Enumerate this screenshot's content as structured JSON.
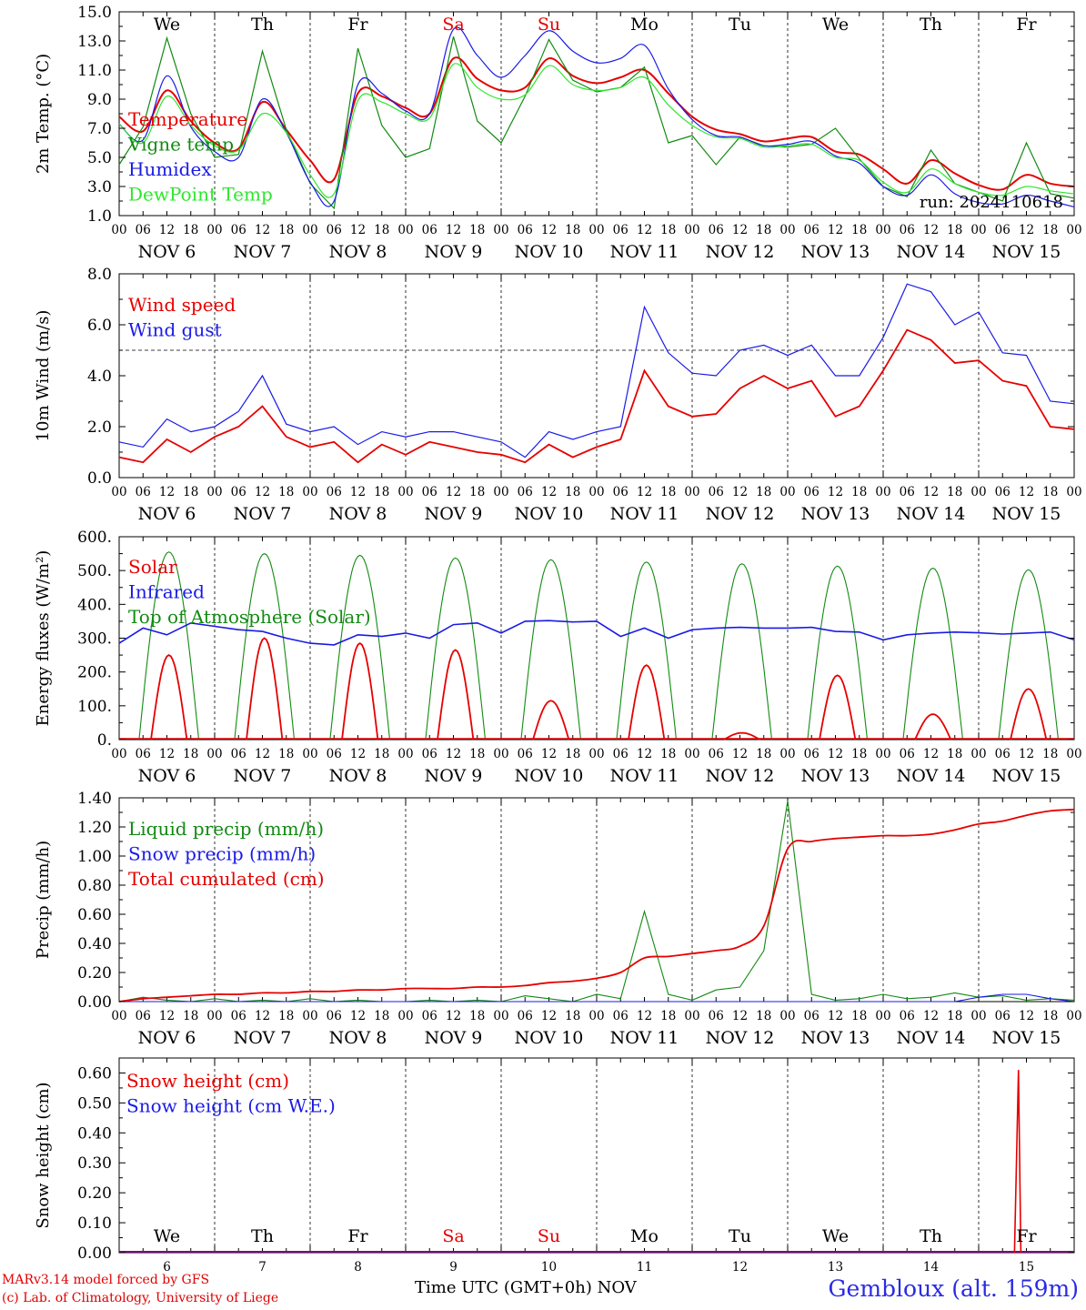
{
  "colors": {
    "red": "#e60000",
    "green": "#128a12",
    "blue": "#1a1ae6",
    "lightgreen": "#2ee62e",
    "weekend": "#e60000",
    "grid": "#000000"
  },
  "run_label": "run: 2024110618",
  "footer": {
    "model": "MARv3.14 model forced by GFS",
    "lab": "(c) Lab. of Climatology, University of Liege",
    "time_axis": "Time UTC (GMT+0h)",
    "month_short": "NOV",
    "station": "Gembloux (alt. 159m)"
  },
  "days": [
    "6",
    "7",
    "8",
    "9",
    "10",
    "11",
    "12",
    "13",
    "14",
    "15"
  ],
  "weekdays": [
    {
      "label": "We",
      "weekend": false
    },
    {
      "label": "Th",
      "weekend": false
    },
    {
      "label": "Fr",
      "weekend": false
    },
    {
      "label": "Sa",
      "weekend": true
    },
    {
      "label": "Su",
      "weekend": true
    },
    {
      "label": "Mo",
      "weekend": false
    },
    {
      "label": "Tu",
      "weekend": false
    },
    {
      "label": "We",
      "weekend": false
    },
    {
      "label": "Th",
      "weekend": false
    },
    {
      "label": "Fr",
      "weekend": false
    }
  ],
  "hour_ticks": [
    "00",
    "06",
    "12",
    "18"
  ],
  "chart_data": [
    {
      "type": "line",
      "ylabel": "2m Temp. (°C)",
      "ylim": [
        1.0,
        15.0
      ],
      "yticks": [
        "1.0",
        "3.0",
        "5.0",
        "7.0",
        "9.0",
        "11.0",
        "13.0",
        "15.0"
      ],
      "x": [
        0,
        6,
        12,
        18,
        24,
        30,
        36,
        42,
        48,
        54,
        60,
        66,
        72,
        78,
        84,
        90,
        96,
        102,
        108,
        114,
        120,
        126,
        132,
        138,
        144,
        150,
        156,
        162,
        168,
        174,
        180,
        186,
        192,
        198,
        204,
        210,
        216,
        222,
        228,
        234,
        240
      ],
      "series": [
        {
          "name": "Temperature",
          "color": "red",
          "values": [
            7.8,
            6.8,
            9.6,
            7.5,
            6.0,
            5.6,
            8.8,
            6.9,
            4.8,
            3.5,
            9.4,
            9.2,
            8.4,
            8.0,
            11.8,
            10.4,
            9.6,
            9.8,
            11.8,
            10.6,
            10.1,
            10.5,
            11.0,
            9.4,
            7.8,
            6.9,
            6.6,
            6.1,
            6.3,
            6.4,
            5.4,
            5.2,
            4.2,
            3.2,
            4.8,
            3.9,
            3.1,
            2.8,
            3.8,
            3.2,
            3.0
          ]
        },
        {
          "name": "Vigne temp",
          "color": "green",
          "values": [
            4.5,
            7.1,
            13.2,
            8.0,
            5.0,
            5.2,
            12.3,
            6.9,
            3.2,
            1.5,
            12.5,
            7.2,
            5.0,
            5.6,
            13.3,
            7.5,
            6.0,
            9.2,
            13.1,
            10.3,
            9.5,
            9.8,
            11.2,
            6.0,
            6.5,
            4.5,
            6.4,
            5.8,
            5.7,
            5.9,
            7.0,
            4.9,
            3.0,
            2.3,
            5.5,
            3.2,
            2.6,
            2.0,
            6.0,
            2.5,
            2.2
          ]
        },
        {
          "name": "Humidex",
          "color": "blue",
          "values": [
            7.3,
            6.2,
            10.6,
            7.1,
            5.4,
            5.0,
            9.0,
            6.7,
            3.3,
            2.0,
            10.0,
            9.4,
            8.2,
            8.0,
            13.8,
            12.0,
            10.5,
            12.0,
            13.7,
            12.3,
            11.5,
            11.8,
            12.7,
            9.7,
            7.6,
            6.5,
            6.4,
            5.8,
            5.9,
            6.1,
            5.1,
            4.6,
            3.0,
            2.4,
            3.8,
            2.5,
            1.9,
            1.8,
            2.4,
            2.0,
            1.6
          ]
        },
        {
          "name": "DewPoint Temp",
          "color": "lightgreen",
          "values": [
            7.3,
            6.0,
            9.2,
            7.2,
            5.8,
            5.5,
            8.0,
            6.7,
            3.8,
            2.5,
            8.9,
            8.8,
            8.0,
            7.7,
            11.4,
            9.8,
            9.0,
            9.3,
            11.3,
            10.0,
            9.6,
            9.8,
            10.5,
            8.6,
            7.2,
            6.4,
            6.3,
            5.7,
            5.8,
            5.9,
            5.0,
            4.8,
            3.3,
            2.6,
            4.2,
            3.2,
            2.6,
            2.4,
            3.0,
            2.7,
            2.5
          ]
        }
      ]
    },
    {
      "type": "line",
      "ylabel": "10m Wind (m/s)",
      "ylim": [
        0.0,
        8.0
      ],
      "yticks": [
        "0.0",
        "2.0",
        "4.0",
        "6.0",
        "8.0"
      ],
      "hline": 5.0,
      "x": [
        0,
        6,
        12,
        18,
        24,
        30,
        36,
        42,
        48,
        54,
        60,
        66,
        72,
        78,
        84,
        90,
        96,
        102,
        108,
        114,
        120,
        126,
        132,
        138,
        144,
        150,
        156,
        162,
        168,
        174,
        180,
        186,
        192,
        198,
        204,
        210,
        216,
        222,
        228,
        234,
        240
      ],
      "series": [
        {
          "name": "Wind speed",
          "color": "red",
          "values": [
            0.8,
            0.6,
            1.5,
            1.0,
            1.6,
            2.0,
            2.8,
            1.6,
            1.2,
            1.4,
            0.6,
            1.3,
            0.9,
            1.4,
            1.2,
            1.0,
            0.9,
            0.6,
            1.3,
            0.8,
            1.2,
            1.5,
            4.2,
            2.8,
            2.4,
            2.5,
            3.5,
            4.0,
            3.5,
            3.8,
            2.4,
            2.8,
            4.2,
            5.8,
            5.4,
            4.5,
            4.6,
            3.8,
            3.6,
            2.0,
            1.9
          ]
        },
        {
          "name": "Wind gust",
          "color": "blue",
          "values": [
            1.4,
            1.2,
            2.3,
            1.8,
            2.0,
            2.6,
            4.0,
            2.1,
            1.8,
            2.0,
            1.3,
            1.8,
            1.6,
            1.8,
            1.8,
            1.6,
            1.4,
            0.8,
            1.8,
            1.5,
            1.8,
            2.0,
            6.7,
            4.9,
            4.1,
            4.0,
            5.0,
            5.2,
            4.8,
            5.2,
            4.0,
            4.0,
            5.5,
            7.6,
            7.3,
            6.0,
            6.5,
            4.9,
            4.8,
            3.0,
            2.9
          ]
        }
      ]
    },
    {
      "type": "line",
      "ylabel": "Energy fluxes (W/m²)",
      "ylim": [
        0,
        600
      ],
      "yticks": [
        "0.",
        "100.",
        "200.",
        "300.",
        "400.",
        "500.",
        "600."
      ],
      "solar_peaks": [
        250,
        300,
        285,
        265,
        115,
        220,
        20,
        190,
        75,
        150
      ],
      "toa_peaks": [
        555,
        550,
        545,
        537,
        532,
        525,
        520,
        513,
        507,
        502
      ],
      "x": [
        0,
        6,
        12,
        18,
        24,
        30,
        36,
        42,
        48,
        54,
        60,
        66,
        72,
        78,
        84,
        90,
        96,
        102,
        108,
        114,
        120,
        126,
        132,
        138,
        144,
        150,
        156,
        162,
        168,
        174,
        180,
        186,
        192,
        198,
        204,
        210,
        216,
        222,
        228,
        234,
        240
      ],
      "series": [
        {
          "name": "Solar",
          "color": "red"
        },
        {
          "name": "Infrared",
          "color": "blue",
          "values": [
            285,
            330,
            310,
            345,
            335,
            325,
            320,
            300,
            285,
            280,
            310,
            305,
            315,
            300,
            340,
            345,
            315,
            350,
            352,
            348,
            350,
            305,
            330,
            300,
            325,
            330,
            332,
            330,
            330,
            332,
            320,
            318,
            295,
            310,
            315,
            318,
            316,
            312,
            315,
            318,
            295
          ]
        },
        {
          "name": "Top of Atmosphere (Solar)",
          "color": "green"
        }
      ]
    },
    {
      "type": "line",
      "ylabel": "Precip (mm/h)",
      "ylim": [
        0.0,
        1.4
      ],
      "yticks": [
        "0.00",
        "0.20",
        "0.40",
        "0.60",
        "0.80",
        "1.00",
        "1.20",
        "1.40"
      ],
      "x": [
        0,
        6,
        12,
        18,
        24,
        30,
        36,
        42,
        48,
        54,
        60,
        66,
        72,
        78,
        84,
        90,
        96,
        102,
        108,
        114,
        120,
        126,
        132,
        138,
        144,
        150,
        156,
        162,
        168,
        174,
        180,
        186,
        192,
        198,
        204,
        210,
        216,
        222,
        228,
        234,
        240
      ],
      "series": [
        {
          "name": "Liquid precip (mm/h)",
          "color": "green",
          "values": [
            0.0,
            0.03,
            0.01,
            0.0,
            0.02,
            0.0,
            0.01,
            0.0,
            0.02,
            0.0,
            0.01,
            0.0,
            0.0,
            0.01,
            0.0,
            0.01,
            0.0,
            0.04,
            0.02,
            0.0,
            0.05,
            0.02,
            0.62,
            0.05,
            0.01,
            0.08,
            0.1,
            0.35,
            1.38,
            0.05,
            0.01,
            0.02,
            0.05,
            0.02,
            0.03,
            0.06,
            0.03,
            0.04,
            0.01,
            0.02,
            0.01
          ]
        },
        {
          "name": "Snow precip (mm/h)",
          "color": "blue",
          "values": [
            0.0,
            0.0,
            0.0,
            0.0,
            0.0,
            0.0,
            0.0,
            0.0,
            0.0,
            0.0,
            0.0,
            0.0,
            0.0,
            0.0,
            0.0,
            0.0,
            0.0,
            0.0,
            0.0,
            0.0,
            0.0,
            0.0,
            0.0,
            0.0,
            0.0,
            0.0,
            0.0,
            0.0,
            0.0,
            0.0,
            0.0,
            0.0,
            0.0,
            0.0,
            0.0,
            0.0,
            0.03,
            0.05,
            0.05,
            0.02,
            0.0
          ]
        },
        {
          "name": "Total cumulated (cm)",
          "color": "red",
          "values": [
            0.0,
            0.02,
            0.03,
            0.04,
            0.05,
            0.05,
            0.06,
            0.06,
            0.07,
            0.07,
            0.08,
            0.08,
            0.09,
            0.09,
            0.09,
            0.1,
            0.1,
            0.11,
            0.13,
            0.14,
            0.16,
            0.2,
            0.3,
            0.31,
            0.33,
            0.35,
            0.38,
            0.52,
            1.05,
            1.1,
            1.12,
            1.13,
            1.14,
            1.14,
            1.15,
            1.18,
            1.22,
            1.24,
            1.28,
            1.31,
            1.32
          ]
        }
      ]
    },
    {
      "type": "line",
      "ylabel": "Snow height (cm)",
      "ylim": [
        0.0,
        0.65
      ],
      "yticks": [
        "0.00",
        "0.10",
        "0.20",
        "0.30",
        "0.40",
        "0.50",
        "0.60"
      ],
      "series": [
        {
          "name": "Snow height (cm)",
          "color": "red",
          "spike": {
            "x": 226,
            "value": 0.61
          }
        },
        {
          "name": "Snow height (cm W.E.)",
          "color": "blue"
        }
      ]
    }
  ]
}
